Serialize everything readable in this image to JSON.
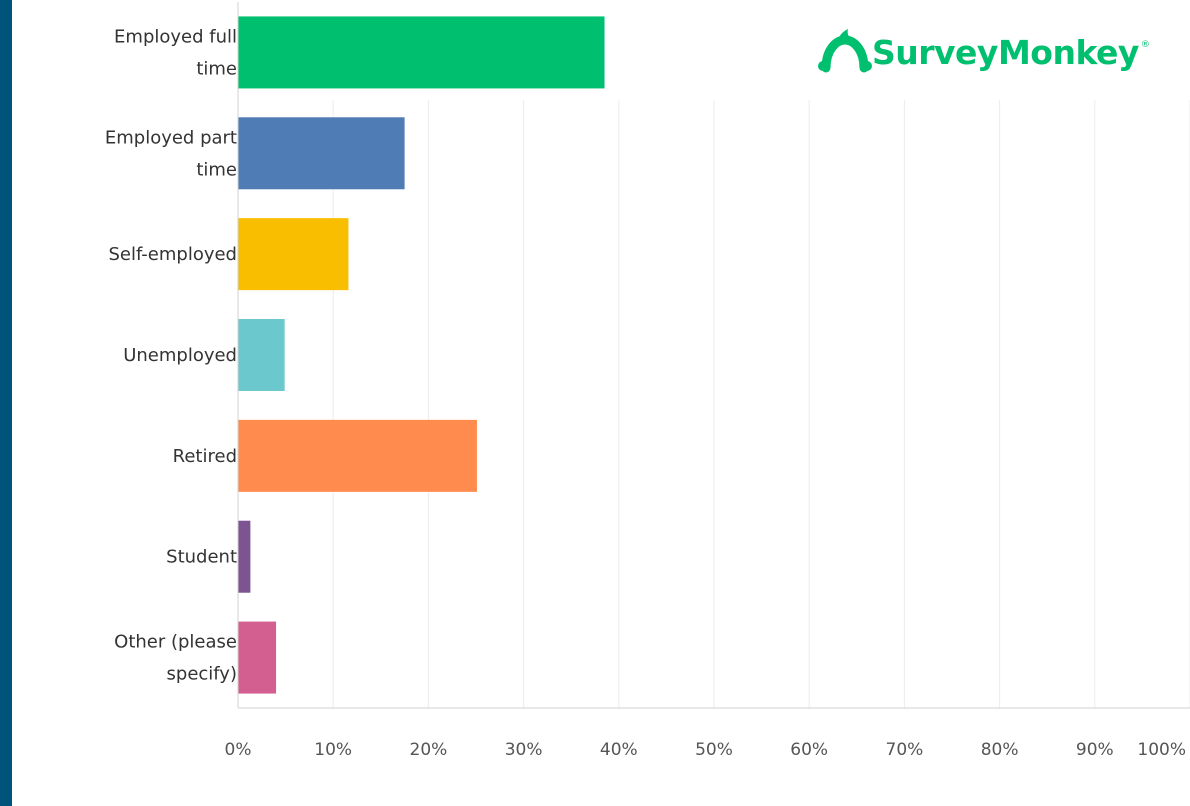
{
  "brand": {
    "name": "SurveyMonkey",
    "registered": "®",
    "color": "#00bf6f"
  },
  "chart_data": {
    "type": "bar",
    "orientation": "horizontal",
    "title": "",
    "xlabel": "",
    "ylabel": "",
    "categories": [
      [
        "Employed full",
        "time"
      ],
      [
        "Employed part",
        "time"
      ],
      [
        "Self-employed"
      ],
      [
        "Unemployed"
      ],
      [
        "Retired"
      ],
      [
        "Student"
      ],
      [
        "Other (please",
        "specify)"
      ]
    ],
    "values": [
      38.5,
      17.5,
      11.6,
      4.9,
      25.1,
      1.3,
      4.0
    ],
    "colors": [
      "#00bf6f",
      "#507cb6",
      "#f9be00",
      "#6bc8cd",
      "#ff8b4f",
      "#7d5391",
      "#d25f90"
    ],
    "xlim": [
      0,
      100
    ],
    "x_ticks": [
      0,
      10,
      20,
      30,
      40,
      50,
      60,
      70,
      80,
      90,
      100
    ],
    "x_tick_labels": [
      "0%",
      "10%",
      "20%",
      "30%",
      "40%",
      "50%",
      "60%",
      "70%",
      "80%",
      "90%",
      "100%"
    ],
    "grid": true,
    "legend": "none"
  }
}
